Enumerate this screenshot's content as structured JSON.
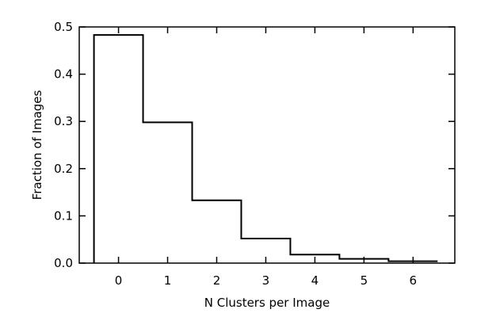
{
  "chart_data": {
    "type": "bar",
    "style": "step-histogram",
    "title": "",
    "xlabel": "N Clusters per Image",
    "ylabel": "Fraction of Images",
    "xlim": [
      -0.8,
      6.85
    ],
    "ylim": [
      0,
      0.5
    ],
    "xticks": [
      0,
      1,
      2,
      3,
      4,
      5,
      6
    ],
    "yticks": [
      0.0,
      0.1,
      0.2,
      0.3,
      0.4,
      0.5
    ],
    "ytick_labels": [
      "0.0",
      "0.1",
      "0.2",
      "0.3",
      "0.4",
      "0.5"
    ],
    "categories": [
      0,
      1,
      2,
      3,
      4,
      5,
      6
    ],
    "values": [
      0.483,
      0.298,
      0.133,
      0.052,
      0.018,
      0.009,
      0.004
    ],
    "grid": false,
    "line_color": "#000000"
  }
}
